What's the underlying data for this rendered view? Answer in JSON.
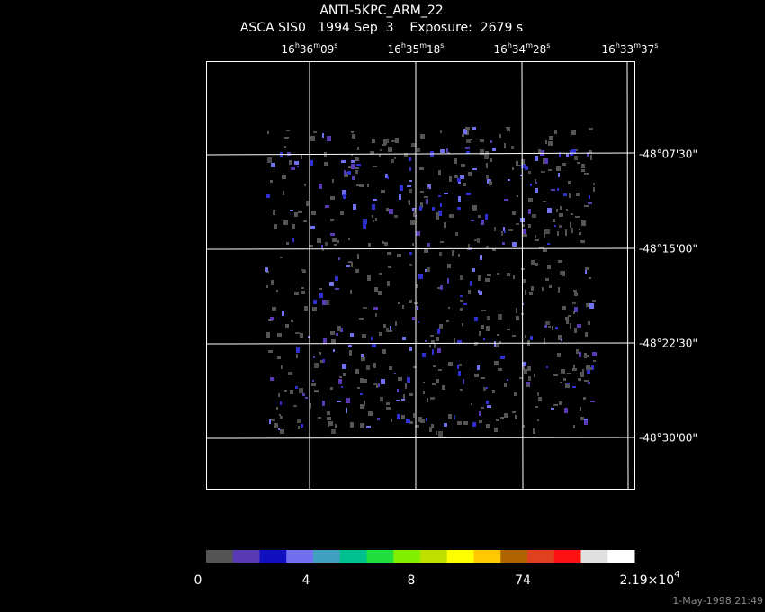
{
  "header": {
    "title": "ANTI-5KPC_ARM_22",
    "subtitle": "ASCA SIS0   1994 Sep  3    Exposure:  2679 s"
  },
  "ra_labels": [
    [
      "16",
      "h",
      "36",
      "m",
      "09",
      "s"
    ],
    [
      "16",
      "h",
      "35",
      "m",
      "18",
      "s"
    ],
    [
      "16",
      "h",
      "34",
      "m",
      "28",
      "s"
    ],
    [
      "16",
      "h",
      "33",
      "m",
      "37",
      "s"
    ]
  ],
  "dec_labels": [
    "-48°07'30\"",
    "-48°15'00\"",
    "-48°22'30\"",
    "-48°30'00\""
  ],
  "colorbar": {
    "colors": [
      "#555555",
      "#5a3ab4",
      "#1010c0",
      "#7070f0",
      "#40a0c0",
      "#00c090",
      "#20e040",
      "#80f000",
      "#c0e000",
      "#ffff00",
      "#ffc800",
      "#b06400",
      "#e04020",
      "#ff1010",
      "#e0e0e0",
      "#ffffff"
    ],
    "labels": [
      [
        "0"
      ],
      [
        "4"
      ],
      [
        "8"
      ],
      [
        "74"
      ],
      [
        "2.19×10",
        "4"
      ]
    ]
  },
  "footer": "1-May-1998 21:49"
}
